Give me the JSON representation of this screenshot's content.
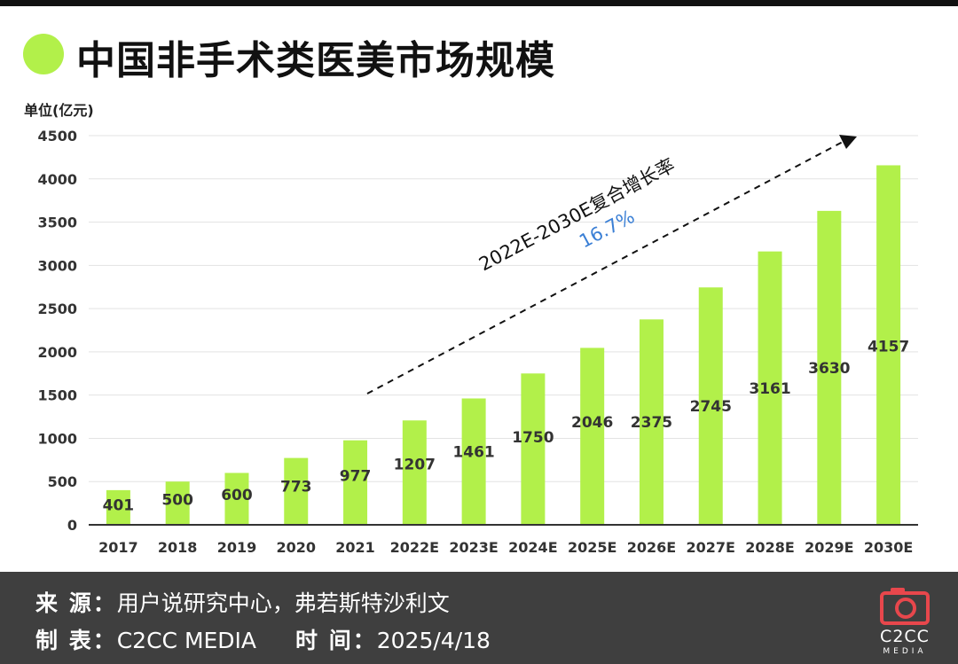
{
  "header": {
    "title": "中国非手术类医美市场规模"
  },
  "chart_data": {
    "type": "bar",
    "title": "中国非手术类医美市场规模",
    "ylabel": "单位(亿元)",
    "xlabel": "",
    "ylim": [
      0,
      4500
    ],
    "yticks": [
      0,
      500,
      1000,
      1500,
      2000,
      2500,
      3000,
      3500,
      4000,
      4500
    ],
    "grid": true,
    "categories": [
      "2017",
      "2018",
      "2019",
      "2020",
      "2021",
      "2022E",
      "2023E",
      "2024E",
      "2025E",
      "2026E",
      "2027E",
      "2028E",
      "2029E",
      "2030E"
    ],
    "values": [
      401,
      500,
      600,
      773,
      977,
      1207,
      1461,
      1750,
      2046,
      2375,
      2745,
      3161,
      3630,
      4157
    ],
    "bar_color": "#b2f04a",
    "annotation": {
      "text": "2022E-2030E复合增长率",
      "value": "16.7%",
      "value_color": "#3a7fd5"
    }
  },
  "footer": {
    "source_label": "来 源：",
    "source_value": "用户说研究中心，弗若斯特沙利文",
    "maker_label": "制 表：",
    "maker_value": "C2CC  MEDIA",
    "time_label": "时 间：",
    "time_value": "2025/4/18"
  },
  "logo": {
    "name": "C2CC",
    "sub": "MEDIA",
    "icon": "camera-icon",
    "color": "#e8474c"
  }
}
